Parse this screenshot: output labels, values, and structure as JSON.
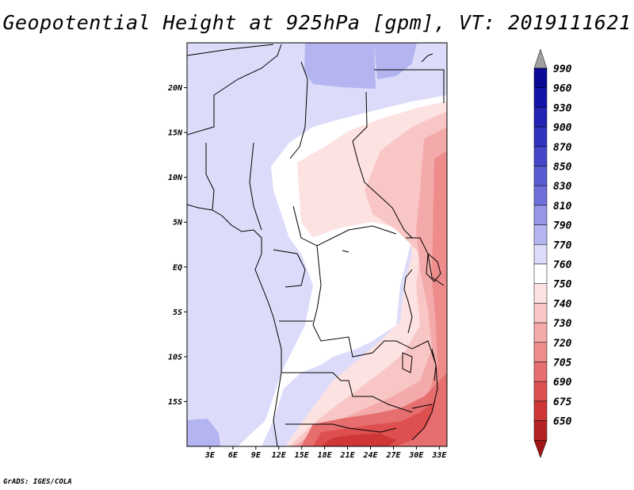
{
  "title": "Geopotential Height at 925hPa [gpm], VT: 2019111621",
  "footer": "GrADS: IGES/COLA",
  "map": {
    "lon_range": [
      0,
      34
    ],
    "lat_range": [
      -20,
      25
    ],
    "lon_ticks": [
      {
        "value": 3,
        "label": "3E"
      },
      {
        "value": 6,
        "label": "6E"
      },
      {
        "value": 9,
        "label": "9E"
      },
      {
        "value": 12,
        "label": "12E"
      },
      {
        "value": 15,
        "label": "15E"
      },
      {
        "value": 18,
        "label": "18E"
      },
      {
        "value": 21,
        "label": "21E"
      },
      {
        "value": 24,
        "label": "24E"
      },
      {
        "value": 27,
        "label": "27E"
      },
      {
        "value": 30,
        "label": "30E"
      },
      {
        "value": 33,
        "label": "33E"
      }
    ],
    "lat_ticks": [
      {
        "value": 20,
        "label": "20N"
      },
      {
        "value": 15,
        "label": "15N"
      },
      {
        "value": 10,
        "label": "10N"
      },
      {
        "value": 5,
        "label": "5N"
      },
      {
        "value": 0,
        "label": "EQ"
      },
      {
        "value": -5,
        "label": "5S"
      },
      {
        "value": -10,
        "label": "10S"
      },
      {
        "value": -15,
        "label": "15S"
      }
    ]
  },
  "colorbar": {
    "levels": [
      {
        "label": "990",
        "color": "#0a0a96"
      },
      {
        "label": "960",
        "color": "#1414a8"
      },
      {
        "label": "930",
        "color": "#2323b4"
      },
      {
        "label": "900",
        "color": "#3232c0"
      },
      {
        "label": "870",
        "color": "#4646c8"
      },
      {
        "label": "850",
        "color": "#5a5ad2"
      },
      {
        "label": "830",
        "color": "#7070dc"
      },
      {
        "label": "810",
        "color": "#9696e6"
      },
      {
        "label": "790",
        "color": "#b4b4f0"
      },
      {
        "label": "770",
        "color": "#dcdcfa"
      },
      {
        "label": "760",
        "color": "#ffffff"
      },
      {
        "label": "750",
        "color": "#fde2e2"
      },
      {
        "label": "740",
        "color": "#f9c6c6"
      },
      {
        "label": "730",
        "color": "#f4aaaa"
      },
      {
        "label": "720",
        "color": "#ee8c8c"
      },
      {
        "label": "705",
        "color": "#e66e6e"
      },
      {
        "label": "690",
        "color": "#de5050"
      },
      {
        "label": "675",
        "color": "#cf3737"
      },
      {
        "label": "650",
        "color": "#b42323"
      }
    ],
    "top_arrow_color": "#a0a0a0",
    "bottom_arrow_color": "#a01414"
  }
}
